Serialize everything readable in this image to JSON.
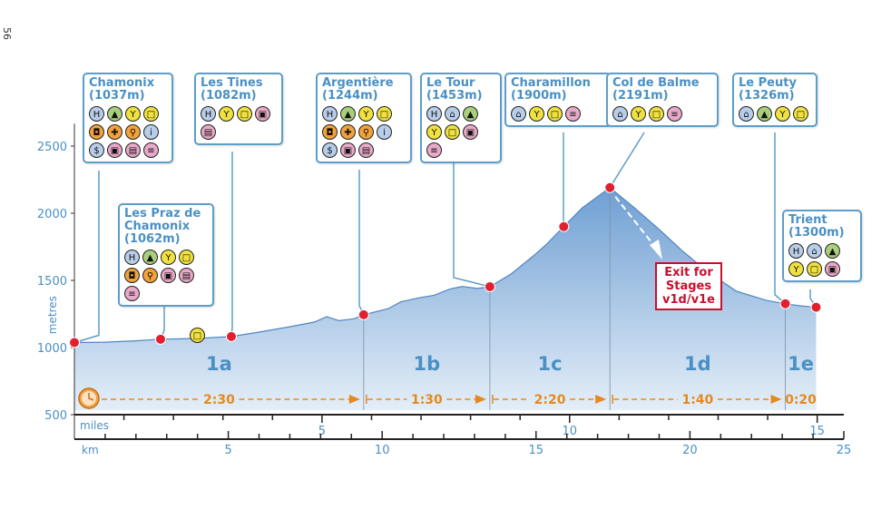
{
  "page_number": "56",
  "colors": {
    "profile_fill_top": "#6f9fd3",
    "profile_fill_bottom": "#dde9f6",
    "time_band": "#f6d9b8",
    "point": "#e01f2f",
    "label_blue": "#4a90c4",
    "time_text": "#e5891f"
  },
  "chart_data": {
    "type": "area",
    "title": "",
    "ylabel": "metres",
    "ylim": [
      500,
      2600
    ],
    "yticks": [
      {
        "v": 500,
        "label": "500"
      },
      {
        "v": 1000,
        "label": "1000"
      },
      {
        "v": 1500,
        "label": "1500"
      },
      {
        "v": 2000,
        "label": "2000"
      },
      {
        "v": 2500,
        "label": "2500"
      }
    ],
    "xlim_km": [
      0,
      25
    ],
    "km_axis": {
      "label": "km",
      "ticks": [
        {
          "v": 5,
          "label": "5"
        },
        {
          "v": 10,
          "label": "10"
        },
        {
          "v": 15,
          "label": "15"
        },
        {
          "v": 20,
          "label": "20"
        },
        {
          "v": 25,
          "label": "25"
        }
      ]
    },
    "miles_axis": {
      "label": "miles",
      "km_per_mile": 1.609,
      "ticks": [
        {
          "v": 5,
          "label": "5"
        },
        {
          "v": 10,
          "label": "10"
        },
        {
          "v": 15,
          "label": "15"
        }
      ]
    },
    "profile": [
      [
        0,
        1037
      ],
      [
        1,
        1040
      ],
      [
        2,
        1050
      ],
      [
        2.8,
        1062
      ],
      [
        3.5,
        1065
      ],
      [
        4.2,
        1070
      ],
      [
        5.1,
        1082
      ],
      [
        6,
        1115
      ],
      [
        7,
        1155
      ],
      [
        7.8,
        1190
      ],
      [
        8.2,
        1230
      ],
      [
        8.6,
        1200
      ],
      [
        9.1,
        1215
      ],
      [
        9.4,
        1244
      ],
      [
        10.2,
        1290
      ],
      [
        10.6,
        1340
      ],
      [
        11.2,
        1370
      ],
      [
        11.7,
        1390
      ],
      [
        12.2,
        1435
      ],
      [
        12.6,
        1455
      ],
      [
        13.1,
        1440
      ],
      [
        13.5,
        1453
      ],
      [
        14.2,
        1550
      ],
      [
        14.9,
        1680
      ],
      [
        15.3,
        1760
      ],
      [
        15.9,
        1900
      ],
      [
        16.5,
        2040
      ],
      [
        17.4,
        2191
      ],
      [
        18.2,
        2040
      ],
      [
        19,
        1880
      ],
      [
        19.8,
        1710
      ],
      [
        20.6,
        1560
      ],
      [
        21.5,
        1420
      ],
      [
        22.5,
        1350
      ],
      [
        23.1,
        1326
      ],
      [
        23.6,
        1310
      ],
      [
        24.1,
        1300
      ]
    ],
    "waypoints": [
      {
        "name": "Chamonix",
        "km": 0,
        "elev": 1037
      },
      {
        "name": "Les Praz de Chamonix",
        "km": 2.8,
        "elev": 1062
      },
      {
        "name": "Les Tines",
        "km": 5.1,
        "elev": 1082
      },
      {
        "name": "Argentière",
        "km": 9.4,
        "elev": 1244
      },
      {
        "name": "Le Tour",
        "km": 13.5,
        "elev": 1453
      },
      {
        "name": "Charamillon",
        "km": 15.9,
        "elev": 1900
      },
      {
        "name": "Col de Balme",
        "km": 17.4,
        "elev": 2191
      },
      {
        "name": "Le Peuty",
        "km": 23.1,
        "elev": 1326
      },
      {
        "name": "Trient",
        "km": 24.1,
        "elev": 1300
      }
    ],
    "stage_dividers_km": [
      9.4,
      13.5,
      17.4,
      23.1
    ],
    "sections": [
      {
        "label": "1a",
        "start_km": 0,
        "end_km": 9.4,
        "time": "2:30"
      },
      {
        "label": "1b",
        "start_km": 9.4,
        "end_km": 13.5,
        "time": "1:30"
      },
      {
        "label": "1c",
        "start_km": 13.5,
        "end_km": 17.4,
        "time": "2:20"
      },
      {
        "label": "1d",
        "start_km": 17.4,
        "end_km": 23.1,
        "time": "1:40"
      },
      {
        "label": "1e",
        "start_km": 23.1,
        "end_km": 24.1,
        "time": "0:20"
      }
    ],
    "exit": {
      "label": "Exit for\nStages\nv1d/v1e"
    }
  },
  "stations": [
    {
      "label": "Chamonix\n(1037m)",
      "icons": [
        {
          "g": "H",
          "c": "blue"
        },
        {
          "g": "▲",
          "c": "green"
        },
        {
          "g": "Y",
          "c": "yellow"
        },
        {
          "g": "□",
          "c": "yellow"
        },
        {
          "g": "◘",
          "c": "orange"
        },
        {
          "g": "✚",
          "c": "orange"
        },
        {
          "g": "⚲",
          "c": "orange"
        },
        {
          "g": "i",
          "c": "blue"
        },
        {
          "g": "$",
          "c": "blue"
        },
        {
          "g": "▣",
          "c": "pink"
        },
        {
          "g": "▤",
          "c": "pink"
        },
        {
          "g": "≡",
          "c": "pink"
        }
      ]
    },
    {
      "label": "Les Praz de\nChamonix\n(1062m)",
      "icons": [
        {
          "g": "H",
          "c": "blue"
        },
        {
          "g": "▲",
          "c": "green"
        },
        {
          "g": "Y",
          "c": "yellow"
        },
        {
          "g": "□",
          "c": "yellow"
        },
        {
          "g": "◘",
          "c": "orange"
        },
        {
          "g": "⚲",
          "c": "orange"
        },
        {
          "g": "▣",
          "c": "pink"
        },
        {
          "g": "▤",
          "c": "pink"
        },
        {
          "g": "≡",
          "c": "pink"
        }
      ]
    },
    {
      "label": "Les Tines\n(1082m)",
      "icons": [
        {
          "g": "H",
          "c": "blue"
        },
        {
          "g": "Y",
          "c": "yellow"
        },
        {
          "g": "□",
          "c": "yellow"
        },
        {
          "g": "▣",
          "c": "pink"
        },
        {
          "g": "▤",
          "c": "pink"
        }
      ]
    },
    {
      "label": "Argentière\n(1244m)",
      "icons": [
        {
          "g": "H",
          "c": "blue"
        },
        {
          "g": "▲",
          "c": "green"
        },
        {
          "g": "Y",
          "c": "yellow"
        },
        {
          "g": "□",
          "c": "yellow"
        },
        {
          "g": "◘",
          "c": "orange"
        },
        {
          "g": "✚",
          "c": "orange"
        },
        {
          "g": "⚲",
          "c": "orange"
        },
        {
          "g": "i",
          "c": "blue"
        },
        {
          "g": "$",
          "c": "blue"
        },
        {
          "g": "▣",
          "c": "pink"
        },
        {
          "g": "▤",
          "c": "pink"
        }
      ]
    },
    {
      "label": "Le Tour\n(1453m)",
      "icons": [
        {
          "g": "H",
          "c": "blue"
        },
        {
          "g": "⌂",
          "c": "blue"
        },
        {
          "g": "▲",
          "c": "green"
        },
        {
          "g": "Y",
          "c": "yellow"
        },
        {
          "g": "□",
          "c": "yellow"
        },
        {
          "g": "▣",
          "c": "pink"
        },
        {
          "g": "≡",
          "c": "pink"
        }
      ]
    },
    {
      "label": "Charamillon\n(1900m)",
      "icons": [
        {
          "g": "⌂",
          "c": "blue"
        },
        {
          "g": "Y",
          "c": "yellow"
        },
        {
          "g": "□",
          "c": "yellow"
        },
        {
          "g": "≡",
          "c": "pink"
        }
      ]
    },
    {
      "label": "Col de Balme\n(2191m)",
      "icons": [
        {
          "g": "⌂",
          "c": "blue"
        },
        {
          "g": "Y",
          "c": "yellow"
        },
        {
          "g": "□",
          "c": "yellow"
        },
        {
          "g": "≡",
          "c": "pink"
        }
      ]
    },
    {
      "label": "Le Peuty\n(1326m)",
      "icons": [
        {
          "g": "⌂",
          "c": "blue"
        },
        {
          "g": "▲",
          "c": "green"
        },
        {
          "g": "Y",
          "c": "yellow"
        },
        {
          "g": "□",
          "c": "yellow"
        }
      ]
    },
    {
      "label": "Trient\n(1300m)",
      "icons": [
        {
          "g": "H",
          "c": "blue"
        },
        {
          "g": "⌂",
          "c": "blue"
        },
        {
          "g": "▲",
          "c": "green"
        },
        {
          "g": "Y",
          "c": "yellow"
        },
        {
          "g": "□",
          "c": "yellow"
        },
        {
          "g": "▣",
          "c": "pink"
        }
      ]
    }
  ]
}
